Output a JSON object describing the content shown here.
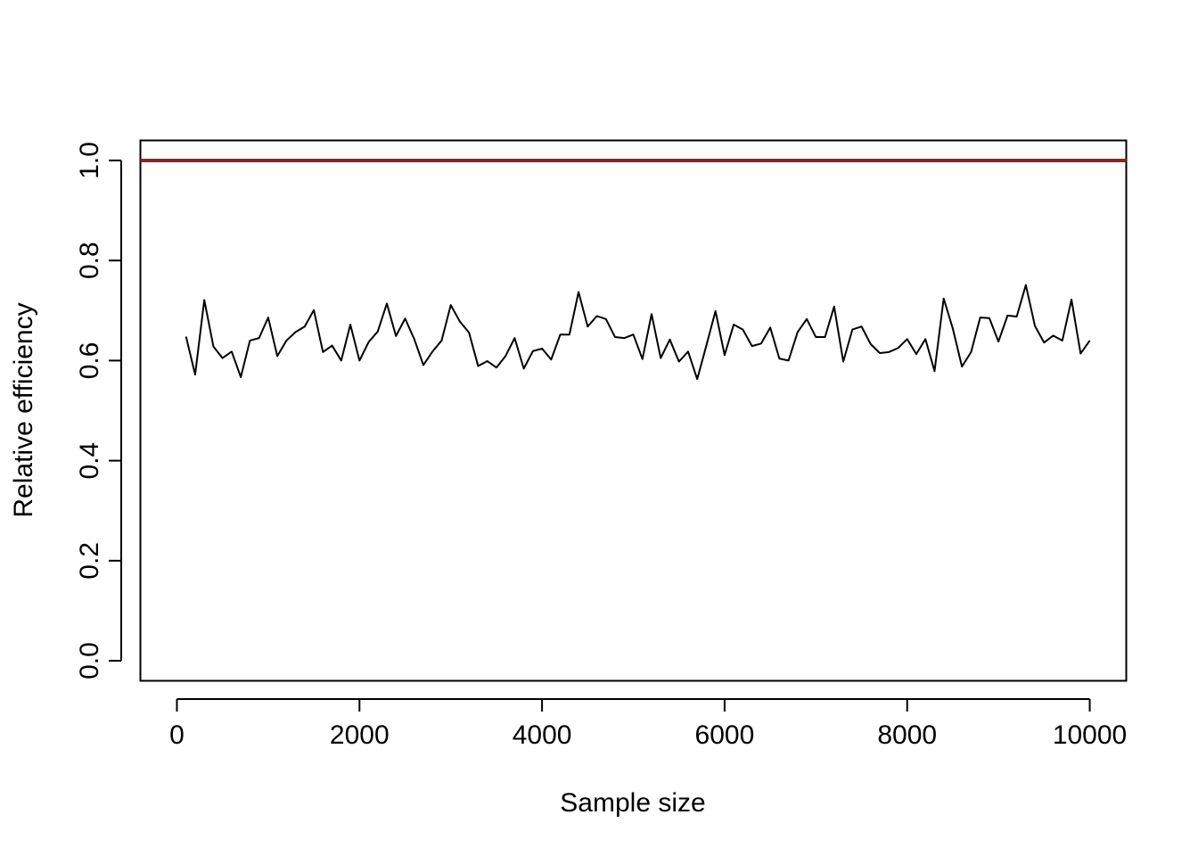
{
  "chart_data": {
    "type": "line",
    "title": "",
    "xlabel": "Sample size",
    "ylabel": "Relative efficiency",
    "xlim": [
      -400,
      10400
    ],
    "ylim": [
      -0.04,
      1.04
    ],
    "x_ticks": [
      0,
      2000,
      4000,
      6000,
      8000,
      10000
    ],
    "x_tick_labels": [
      "0",
      "2000",
      "4000",
      "6000",
      "8000",
      "10000"
    ],
    "y_ticks": [
      0.0,
      0.2,
      0.4,
      0.6,
      0.8,
      1.0
    ],
    "y_tick_labels": [
      "0.0",
      "0.2",
      "0.4",
      "0.6",
      "0.8",
      "1.0"
    ],
    "grid": false,
    "legend": "none",
    "reference_line": {
      "y": 1.0,
      "color": "#7a2e2a"
    },
    "series": [
      {
        "color": "#000000",
        "x": [
          100,
          200,
          300,
          400,
          500,
          600,
          700,
          800,
          900,
          1000,
          1100,
          1200,
          1300,
          1400,
          1500,
          1600,
          1700,
          1800,
          1900,
          2000,
          2100,
          2200,
          2300,
          2400,
          2500,
          2600,
          2700,
          2800,
          2900,
          3000,
          3100,
          3200,
          3300,
          3400,
          3500,
          3600,
          3700,
          3800,
          3900,
          4000,
          4100,
          4200,
          4300,
          4400,
          4500,
          4600,
          4700,
          4800,
          4900,
          5000,
          5100,
          5200,
          5300,
          5400,
          5500,
          5600,
          5700,
          5800,
          5900,
          6000,
          6100,
          6200,
          6300,
          6400,
          6500,
          6600,
          6700,
          6800,
          6900,
          7000,
          7100,
          7200,
          7300,
          7400,
          7500,
          7600,
          7700,
          7800,
          7900,
          8000,
          8100,
          8200,
          8300,
          8400,
          8500,
          8600,
          8700,
          8800,
          8900,
          9000,
          9100,
          9200,
          9300,
          9400,
          9500,
          9600,
          9700,
          9800,
          9900,
          10000
        ],
        "y": [
          0.648,
          0.572,
          0.721,
          0.628,
          0.605,
          0.618,
          0.567,
          0.64,
          0.645,
          0.686,
          0.609,
          0.64,
          0.657,
          0.668,
          0.701,
          0.617,
          0.63,
          0.6,
          0.672,
          0.6,
          0.637,
          0.658,
          0.714,
          0.649,
          0.684,
          0.643,
          0.591,
          0.618,
          0.64,
          0.711,
          0.678,
          0.656,
          0.589,
          0.599,
          0.586,
          0.609,
          0.645,
          0.584,
          0.619,
          0.624,
          0.602,
          0.652,
          0.652,
          0.737,
          0.668,
          0.689,
          0.683,
          0.647,
          0.645,
          0.652,
          0.603,
          0.693,
          0.605,
          0.642,
          0.598,
          0.618,
          0.563,
          0.63,
          0.699,
          0.611,
          0.672,
          0.662,
          0.629,
          0.634,
          0.666,
          0.604,
          0.6,
          0.657,
          0.683,
          0.647,
          0.647,
          0.708,
          0.598,
          0.662,
          0.668,
          0.633,
          0.615,
          0.617,
          0.625,
          0.643,
          0.613,
          0.643,
          0.579,
          0.724,
          0.664,
          0.588,
          0.617,
          0.686,
          0.685,
          0.638,
          0.69,
          0.688,
          0.751,
          0.669,
          0.636,
          0.65,
          0.64,
          0.722,
          0.614,
          0.64
        ]
      }
    ]
  }
}
